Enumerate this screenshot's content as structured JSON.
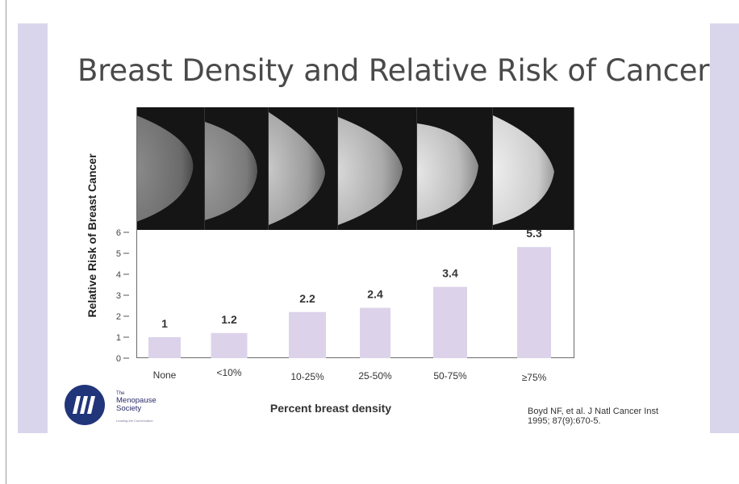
{
  "slide": {
    "title": "Breast Density and Relative Risk of Cancer",
    "citation_line1": "Boyd NF, et al. J Natl Cancer Inst",
    "citation_line2": "1995; 87(9):670-5."
  },
  "logo": {
    "name_line1": "The",
    "name_line2": "Menopause",
    "name_line3": "Society",
    "tagline": "Leading the Conversation"
  },
  "colors": {
    "bar": "#dcd3ea",
    "side_band": "#d9d6ec",
    "logo_blue": "#21357a"
  },
  "chart_data": {
    "type": "bar",
    "title": "",
    "xlabel": "Percent breast density",
    "ylabel": "Relative   Risk of Breast Cancer",
    "categories": [
      "None",
      "<10%",
      "10-25%",
      "25-50%",
      "50-75%",
      "≥75%"
    ],
    "values": [
      1,
      1.2,
      2.2,
      2.4,
      3.4,
      5.3
    ],
    "value_labels": [
      "1",
      "1.2",
      "2.2",
      "2.4",
      "3.4",
      "5.3"
    ],
    "ylim": [
      0,
      6
    ],
    "yticks": [
      "0",
      "1",
      "2",
      "3",
      "4",
      "5",
      "6"
    ],
    "grid": false,
    "legend": "none",
    "image_row": "mammograms"
  }
}
